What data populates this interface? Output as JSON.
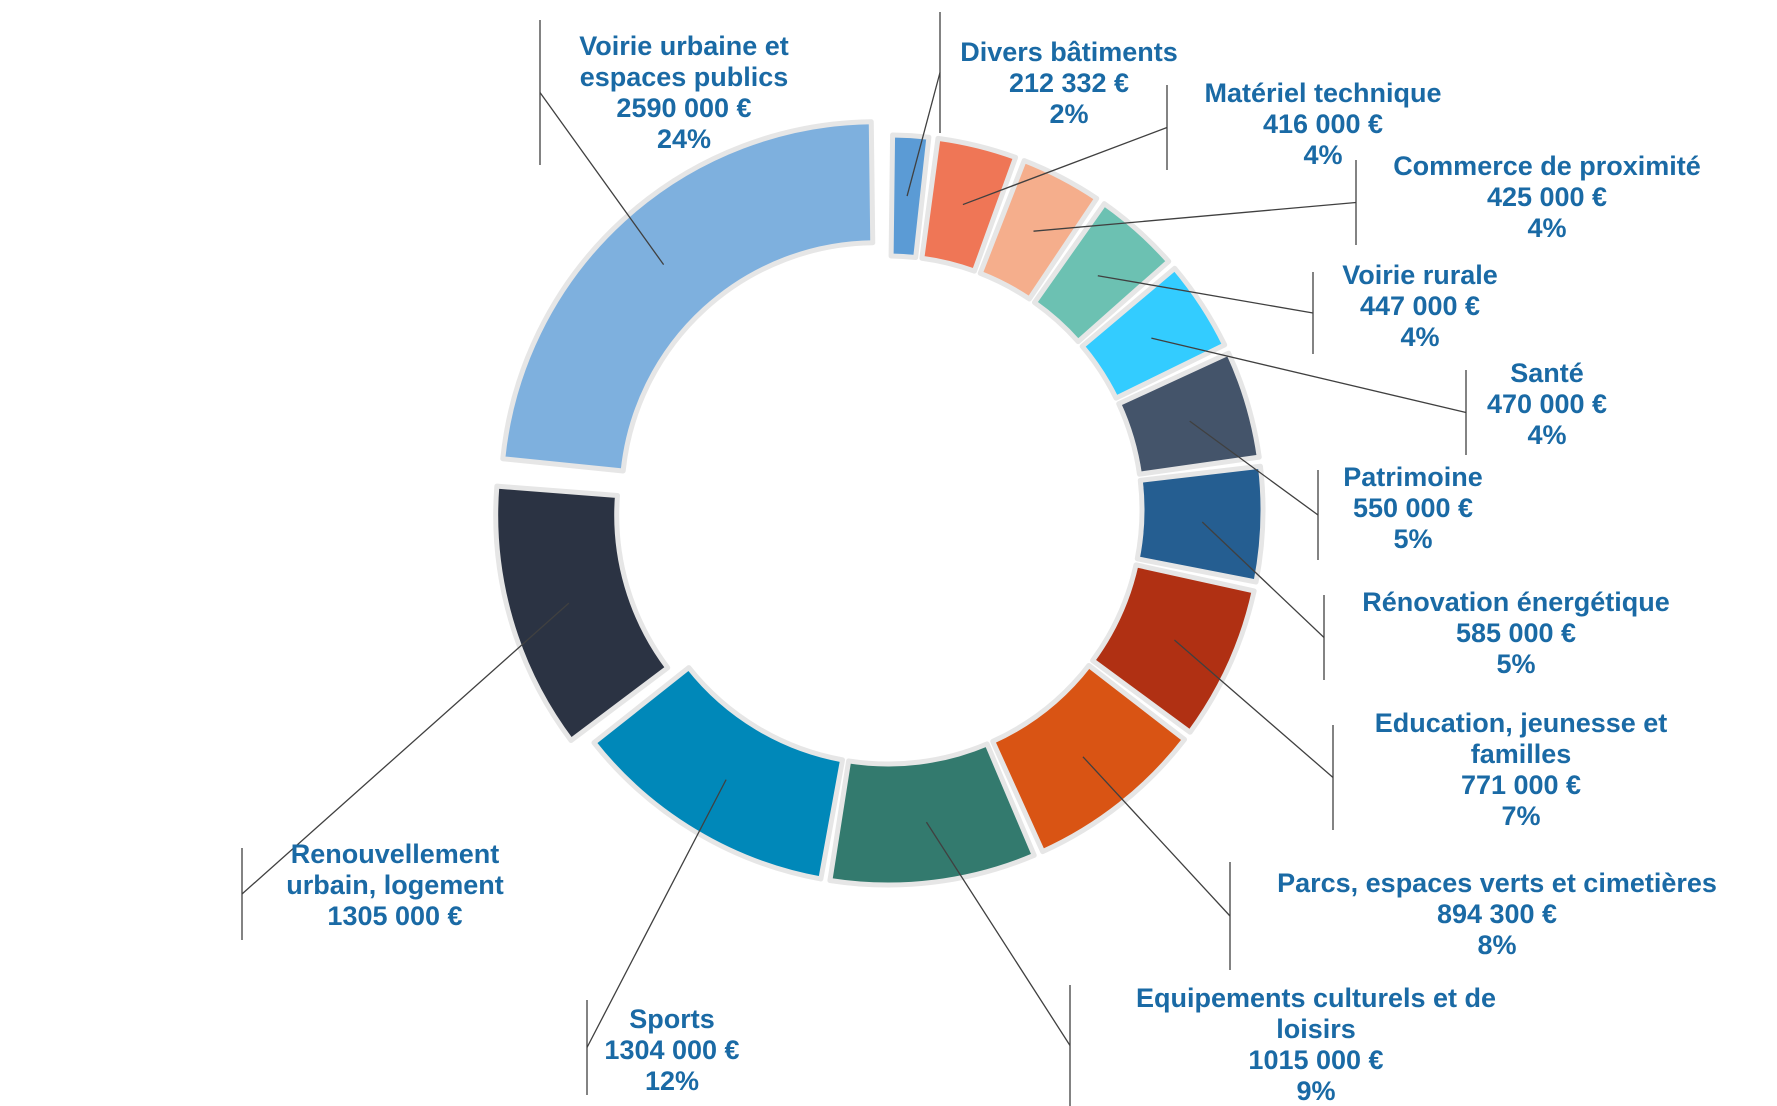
{
  "chart_data": {
    "type": "pie",
    "title": "",
    "slices": [
      {
        "name": "Divers bâtiments",
        "value": 212332,
        "value_label": "212 332 €",
        "percent_label": "2%",
        "color": "#5b9bd5"
      },
      {
        "name": "Matériel technique",
        "value": 416000,
        "value_label": "416 000 €",
        "percent_label": "4%",
        "color": "#ef7656"
      },
      {
        "name": "Commerce de proximité",
        "value": 425000,
        "value_label": "425 000 €",
        "percent_label": "4%",
        "color": "#f5ae8c"
      },
      {
        "name": "Voirie rurale",
        "value": 447000,
        "value_label": "447 000 €",
        "percent_label": "4%",
        "color": "#6cc1b2"
      },
      {
        "name": "Santé",
        "value": 470000,
        "value_label": "470 000 €",
        "percent_label": "4%",
        "color": "#33ccff"
      },
      {
        "name": "Patrimoine",
        "value": 550000,
        "value_label": "550 000 €",
        "percent_label": "5%",
        "color": "#44546a"
      },
      {
        "name": "Rénovation énergétique",
        "value": 585000,
        "value_label": "585 000 €",
        "percent_label": "5%",
        "color": "#255e91"
      },
      {
        "name": "Education, jeunesse et familles",
        "value": 771000,
        "value_label": "771 000 €",
        "percent_label": "7%",
        "color": "#b03013"
      },
      {
        "name": "Parcs, espaces verts et cimetières",
        "value": 894300,
        "value_label": "894 300 €",
        "percent_label": "8%",
        "color": "#d95414"
      },
      {
        "name": "Equipements culturels et de loisirs",
        "value": 1015000,
        "value_label": "1015 000 €",
        "percent_label": "9%",
        "color": "#337a6e"
      },
      {
        "name": "Sports",
        "value": 1304000,
        "value_label": "1304 000 €",
        "percent_label": "12%",
        "color": "#0088b9"
      },
      {
        "name": "Renouvellement urbain, logement",
        "value": 1305000,
        "value_label": "1305 000 €",
        "percent_label": "",
        "color": "#2b3343"
      },
      {
        "name": "Voirie urbaine et espaces publics",
        "value": 2590000,
        "value_label": "2590 000 €",
        "percent_label": "24%",
        "color": "#7eb0de"
      }
    ],
    "labels": [
      {
        "slice": 0,
        "lines": [
          "Divers bâtiments",
          "212 332 €",
          "2%"
        ]
      },
      {
        "slice": 1,
        "lines": [
          "Matériel technique",
          "416 000 €",
          "4%"
        ]
      },
      {
        "slice": 2,
        "lines": [
          "Commerce de proximité",
          "425 000 €",
          "4%"
        ]
      },
      {
        "slice": 3,
        "lines": [
          "Voirie rurale",
          "447 000 €",
          "4%"
        ]
      },
      {
        "slice": 4,
        "lines": [
          "Santé",
          "470 000 €",
          "4%"
        ]
      },
      {
        "slice": 5,
        "lines": [
          "Patrimoine",
          "550 000 €",
          "5%"
        ]
      },
      {
        "slice": 6,
        "lines": [
          "Rénovation énergétique",
          "585 000 €",
          "5%"
        ]
      },
      {
        "slice": 7,
        "lines": [
          "Education, jeunesse et",
          "familles",
          "771 000 €",
          "7%"
        ]
      },
      {
        "slice": 8,
        "lines": [
          "Parcs, espaces verts et cimetières",
          "894 300 €",
          "8%"
        ]
      },
      {
        "slice": 9,
        "lines": [
          "Equipements culturels et de",
          "loisirs",
          "1015 000 €",
          "9%"
        ]
      },
      {
        "slice": 10,
        "lines": [
          "Sports",
          "1304 000 €",
          "12%"
        ]
      },
      {
        "slice": 11,
        "lines": [
          "Renouvellement",
          "urbain, logement",
          "1305 000 €"
        ]
      },
      {
        "slice": 12,
        "lines": [
          "Voirie urbaine et",
          "espaces publics",
          "2590 000 €",
          "24%"
        ]
      }
    ]
  }
}
